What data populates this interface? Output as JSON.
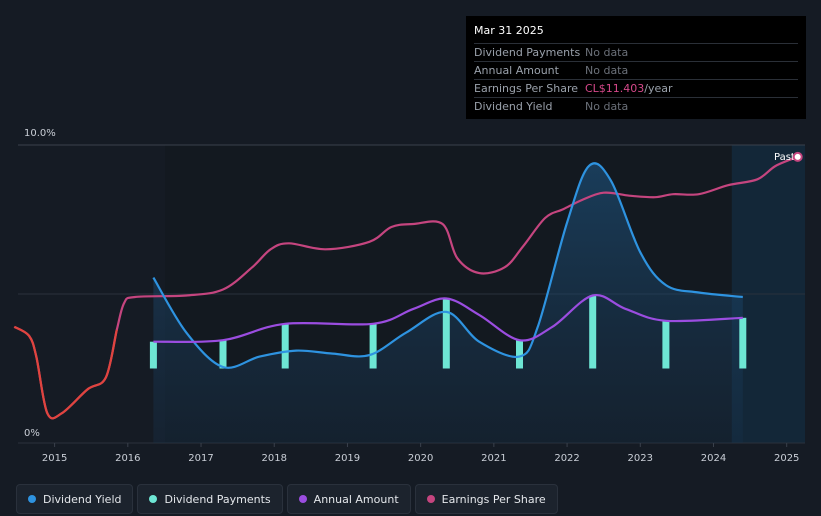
{
  "tooltip": {
    "date": "Mar 31 2025",
    "rows": [
      {
        "label": "Dividend Payments",
        "value": "No data",
        "unit": ""
      },
      {
        "label": "Annual Amount",
        "value": "No data",
        "unit": ""
      },
      {
        "label": "Earnings Per Share",
        "value": "CL$11.403",
        "unit": "/year"
      },
      {
        "label": "Dividend Yield",
        "value": "No data",
        "unit": ""
      }
    ]
  },
  "legend": [
    {
      "label": "Dividend Yield",
      "color": "#2e93e0"
    },
    {
      "label": "Dividend Payments",
      "color": "#6ee6d4"
    },
    {
      "label": "Annual Amount",
      "color": "#9b4de0"
    },
    {
      "label": "Earnings Per Share",
      "color": "#c5457f"
    }
  ],
  "chart_data": {
    "type": "line",
    "y_top_label": "10.0%",
    "y_bottom_label": "0%",
    "past_label": "Past",
    "ylim": [
      0,
      10
    ],
    "xlim": [
      2014.5,
      2025.25
    ],
    "x_ticks": [
      2015,
      2016,
      2017,
      2018,
      2019,
      2020,
      2021,
      2022,
      2023,
      2024,
      2025
    ],
    "forecast_start": 2024.25,
    "series": [
      {
        "name": "Earnings Per Share",
        "color": "#c5457f",
        "points": [
          [
            2014.45,
            3.9
          ],
          [
            2014.65,
            3.6
          ],
          [
            2014.75,
            2.9
          ],
          [
            2014.9,
            1.0
          ],
          [
            2015.1,
            1.0
          ],
          [
            2015.45,
            1.8
          ],
          [
            2015.7,
            2.2
          ],
          [
            2015.85,
            3.8
          ],
          [
            2015.95,
            4.7
          ],
          [
            2016.1,
            4.9
          ],
          [
            2016.8,
            4.95
          ],
          [
            2017.3,
            5.15
          ],
          [
            2017.7,
            5.9
          ],
          [
            2017.95,
            6.5
          ],
          [
            2018.2,
            6.7
          ],
          [
            2018.7,
            6.5
          ],
          [
            2019.3,
            6.75
          ],
          [
            2019.6,
            7.25
          ],
          [
            2019.9,
            7.35
          ],
          [
            2020.3,
            7.35
          ],
          [
            2020.5,
            6.2
          ],
          [
            2020.8,
            5.7
          ],
          [
            2021.15,
            5.9
          ],
          [
            2021.4,
            6.6
          ],
          [
            2021.7,
            7.55
          ],
          [
            2021.95,
            7.85
          ],
          [
            2022.2,
            8.15
          ],
          [
            2022.5,
            8.4
          ],
          [
            2022.85,
            8.3
          ],
          [
            2023.2,
            8.25
          ],
          [
            2023.45,
            8.35
          ],
          [
            2023.8,
            8.35
          ],
          [
            2024.2,
            8.65
          ],
          [
            2024.6,
            8.85
          ],
          [
            2024.85,
            9.3
          ],
          [
            2025.15,
            9.6
          ]
        ]
      },
      {
        "name": "Dividend Yield",
        "color": "#2e93e0",
        "points": [
          [
            2016.35,
            5.55
          ],
          [
            2016.8,
            3.7
          ],
          [
            2017.3,
            2.55
          ],
          [
            2017.8,
            2.9
          ],
          [
            2018.3,
            3.1
          ],
          [
            2018.8,
            3.0
          ],
          [
            2019.3,
            2.95
          ],
          [
            2019.8,
            3.7
          ],
          [
            2020.35,
            4.4
          ],
          [
            2020.8,
            3.4
          ],
          [
            2021.35,
            2.9
          ],
          [
            2021.6,
            3.9
          ],
          [
            2022.0,
            7.4
          ],
          [
            2022.3,
            9.3
          ],
          [
            2022.6,
            8.8
          ],
          [
            2023.0,
            6.4
          ],
          [
            2023.35,
            5.3
          ],
          [
            2023.8,
            5.05
          ],
          [
            2024.4,
            4.9
          ]
        ]
      },
      {
        "name": "Annual Amount",
        "color": "#9b4de0",
        "points": [
          [
            2016.35,
            3.4
          ],
          [
            2017.3,
            3.45
          ],
          [
            2018.15,
            4.0
          ],
          [
            2019.35,
            4.0
          ],
          [
            2019.9,
            4.5
          ],
          [
            2020.35,
            4.85
          ],
          [
            2020.8,
            4.3
          ],
          [
            2021.35,
            3.45
          ],
          [
            2021.8,
            3.9
          ],
          [
            2022.35,
            4.95
          ],
          [
            2022.8,
            4.5
          ],
          [
            2023.35,
            4.1
          ],
          [
            2024.4,
            4.2
          ]
        ]
      }
    ],
    "payments": {
      "name": "Dividend Payments",
      "color": "#6ee6d4",
      "bars": [
        [
          2016.35,
          3.4
        ],
        [
          2017.3,
          3.45
        ],
        [
          2018.15,
          4.0
        ],
        [
          2019.35,
          4.0
        ],
        [
          2020.35,
          4.85
        ],
        [
          2021.35,
          3.45
        ],
        [
          2022.35,
          4.95
        ],
        [
          2023.35,
          4.1
        ],
        [
          2024.4,
          4.2
        ]
      ],
      "baseline": 2.5
    }
  }
}
